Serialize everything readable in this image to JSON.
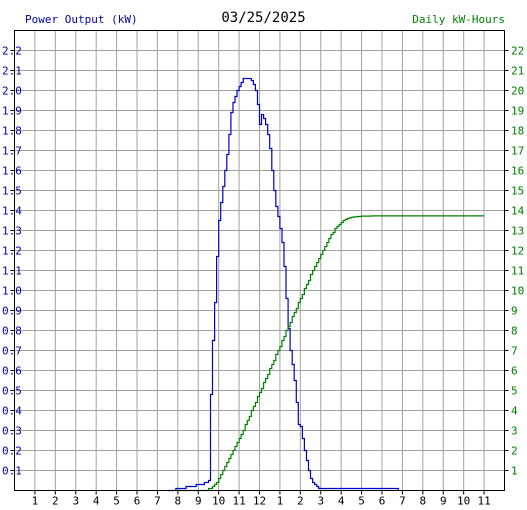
{
  "chart_data": {
    "type": "line",
    "title": "03/25/2025",
    "left_axis_label": "Power Output (kW)",
    "right_axis_label": "Daily kW-Hours",
    "x_tick_labels": [
      "1",
      "2",
      "3",
      "4",
      "5",
      "6",
      "7",
      "8",
      "9",
      "10",
      "11",
      "12",
      "1",
      "2",
      "3",
      "4",
      "5",
      "6",
      "7",
      "8",
      "9",
      "10",
      "11"
    ],
    "left_ticks": [
      "0.1",
      "0.2",
      "0.3",
      "0.4",
      "0.5",
      "0.6",
      "0.7",
      "0.8",
      "0.9",
      "1.0",
      "1.1",
      "1.2",
      "1.3",
      "1.4",
      "1.5",
      "1.6",
      "1.7",
      "1.8",
      "1.9",
      "2.0",
      "2.1",
      "2.2"
    ],
    "right_ticks": [
      "1",
      "2",
      "3",
      "4",
      "5",
      "6",
      "7",
      "8",
      "9",
      "10",
      "11",
      "12",
      "13",
      "14",
      "15",
      "16",
      "17",
      "18",
      "19",
      "20",
      "21",
      "22"
    ],
    "x_range": [
      0,
      24
    ],
    "ylim_left": [
      0,
      2.3
    ],
    "ylim_right": [
      0,
      23
    ],
    "grid": true,
    "colors": {
      "power": "#0000cc",
      "energy": "#008000",
      "grid": "#a0a0a0",
      "left_text": "#0000aa",
      "right_text": "#008000"
    },
    "series": [
      {
        "name": "Power Output (kW)",
        "axis": "left",
        "x": [
          7.5,
          7.9,
          8.0,
          8.4,
          8.5,
          8.9,
          9.0,
          9.3,
          9.5,
          9.6,
          9.7,
          9.8,
          9.9,
          10.0,
          10.1,
          10.2,
          10.3,
          10.4,
          10.5,
          10.6,
          10.7,
          10.8,
          10.9,
          11.0,
          11.1,
          11.2,
          11.3,
          11.4,
          11.5,
          11.6,
          11.7,
          11.8,
          11.9,
          12.0,
          12.1,
          12.2,
          12.3,
          12.4,
          12.5,
          12.6,
          12.7,
          12.8,
          12.9,
          13.0,
          13.1,
          13.2,
          13.3,
          13.4,
          13.5,
          13.6,
          13.7,
          13.8,
          13.9,
          14.0,
          14.1,
          14.2,
          14.3,
          14.4,
          14.5,
          14.6,
          14.7,
          14.8,
          14.9,
          15.0,
          15.1,
          15.2,
          15.3,
          15.4,
          15.5,
          15.6,
          15.7,
          15.8,
          15.9,
          16.0,
          16.1,
          16.2,
          16.3,
          16.4,
          16.5,
          16.6,
          16.7,
          16.8,
          16.9,
          17.0,
          17.1,
          17.2,
          17.3,
          17.4,
          17.5,
          17.6,
          17.7,
          17.8,
          17.9,
          18.0,
          18.3,
          18.5,
          18.8
        ],
        "y": [
          0.0,
          0.01,
          0.01,
          0.02,
          0.02,
          0.03,
          0.03,
          0.04,
          0.05,
          0.48,
          0.75,
          0.94,
          1.17,
          1.35,
          1.44,
          1.52,
          1.6,
          1.68,
          1.78,
          1.89,
          1.94,
          1.97,
          2.0,
          2.02,
          2.04,
          2.06,
          2.06,
          2.06,
          2.06,
          2.05,
          2.03,
          2.0,
          1.93,
          1.83,
          1.88,
          1.86,
          1.83,
          1.78,
          1.71,
          1.6,
          1.5,
          1.42,
          1.37,
          1.31,
          1.24,
          1.12,
          0.96,
          0.81,
          0.7,
          0.63,
          0.55,
          0.44,
          0.33,
          0.32,
          0.26,
          0.2,
          0.15,
          0.1,
          0.06,
          0.04,
          0.03,
          0.02,
          0.01,
          0.01,
          0.01,
          0.01,
          0.01,
          0.01,
          0.01,
          0.01,
          0.01,
          0.01,
          0.01,
          0.01,
          0.01,
          0.01,
          0.01,
          0.01,
          0.01,
          0.01,
          0.01,
          0.01,
          0.01,
          0.01,
          0.01,
          0.01,
          0.01,
          0.01,
          0.01,
          0.01,
          0.01,
          0.01,
          0.01,
          0.01,
          0.01,
          0.01,
          0.0
        ]
      },
      {
        "name": "Daily kW-Hours",
        "axis": "right",
        "x": [
          8.0,
          8.5,
          9.0,
          9.5,
          9.7,
          9.8,
          9.9,
          10.0,
          10.1,
          10.2,
          10.3,
          10.4,
          10.5,
          10.6,
          10.7,
          10.8,
          10.9,
          11.0,
          11.1,
          11.2,
          11.3,
          11.4,
          11.5,
          11.6,
          11.7,
          11.8,
          11.9,
          12.0,
          12.1,
          12.2,
          12.3,
          12.4,
          12.5,
          12.6,
          12.7,
          12.8,
          12.9,
          13.0,
          13.1,
          13.2,
          13.3,
          13.4,
          13.5,
          13.6,
          13.7,
          13.8,
          13.9,
          14.0,
          14.1,
          14.2,
          14.3,
          14.4,
          14.5,
          14.6,
          14.7,
          14.8,
          14.9,
          15.0,
          15.1,
          15.2,
          15.3,
          15.4,
          15.5,
          15.6,
          15.7,
          15.8,
          15.9,
          16.0,
          16.1,
          16.2,
          16.3,
          16.4,
          16.5,
          16.6,
          16.8,
          17.0,
          17.5,
          18.0,
          20.0,
          22.0,
          23.0
        ],
        "y": [
          0.0,
          0.0,
          0.0,
          0.1,
          0.2,
          0.3,
          0.4,
          0.6,
          0.8,
          1.0,
          1.2,
          1.4,
          1.6,
          1.8,
          2.0,
          2.2,
          2.4,
          2.6,
          2.8,
          3.0,
          3.3,
          3.5,
          3.7,
          4.0,
          4.2,
          4.4,
          4.7,
          4.9,
          5.1,
          5.4,
          5.6,
          5.8,
          6.1,
          6.3,
          6.5,
          6.8,
          7.0,
          7.2,
          7.5,
          7.7,
          8.0,
          8.2,
          8.4,
          8.7,
          8.9,
          9.1,
          9.4,
          9.6,
          9.8,
          10.1,
          10.3,
          10.5,
          10.8,
          11.0,
          11.2,
          11.4,
          11.6,
          11.8,
          12.0,
          12.2,
          12.4,
          12.6,
          12.8,
          12.9,
          13.1,
          13.2,
          13.3,
          13.4,
          13.5,
          13.55,
          13.6,
          13.63,
          13.66,
          13.68,
          13.7,
          13.72,
          13.73,
          13.73,
          13.73,
          13.73,
          13.73
        ]
      }
    ]
  }
}
